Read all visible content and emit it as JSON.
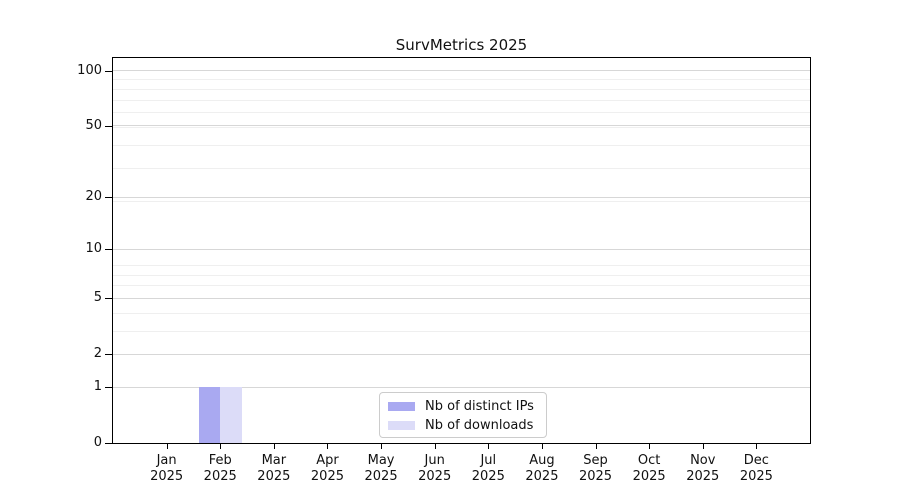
{
  "title": "SurvMetrics 2025",
  "colors": {
    "bar_distinct_ips": "#a9a9f1",
    "bar_downloads": "#dcdcf8",
    "grid_major": "#d7d7d7",
    "grid_minor": "#efefef",
    "axis": "#000000",
    "legend_border": "#cccccc"
  },
  "chart_data": {
    "type": "bar",
    "title": "SurvMetrics 2025",
    "categories": [
      "Jan",
      "Feb",
      "Mar",
      "Apr",
      "May",
      "Jun",
      "Jul",
      "Aug",
      "Sep",
      "Oct",
      "Nov",
      "Dec"
    ],
    "category_year": "2025",
    "series": [
      {
        "name": "Nb of distinct IPs",
        "color": "#a9a9f1",
        "values": [
          0,
          1,
          0,
          0,
          0,
          0,
          0,
          0,
          0,
          0,
          0,
          0
        ]
      },
      {
        "name": "Nb of downloads",
        "color": "#dcdcf8",
        "values": [
          0,
          1,
          0,
          0,
          0,
          0,
          0,
          0,
          0,
          0,
          0,
          0
        ]
      }
    ],
    "xlabel": "",
    "ylabel": "",
    "yscale": "log1p",
    "y_ticks": [
      0,
      1,
      2,
      5,
      10,
      20,
      50,
      100
    ],
    "y_minor_gridlines": [
      1,
      2,
      3,
      4,
      5,
      6,
      7,
      8,
      19,
      29,
      39,
      49,
      59,
      69,
      79,
      89
    ],
    "ylim": [
      0,
      117
    ],
    "grid": "horizontal",
    "legend_position": "lower center"
  }
}
